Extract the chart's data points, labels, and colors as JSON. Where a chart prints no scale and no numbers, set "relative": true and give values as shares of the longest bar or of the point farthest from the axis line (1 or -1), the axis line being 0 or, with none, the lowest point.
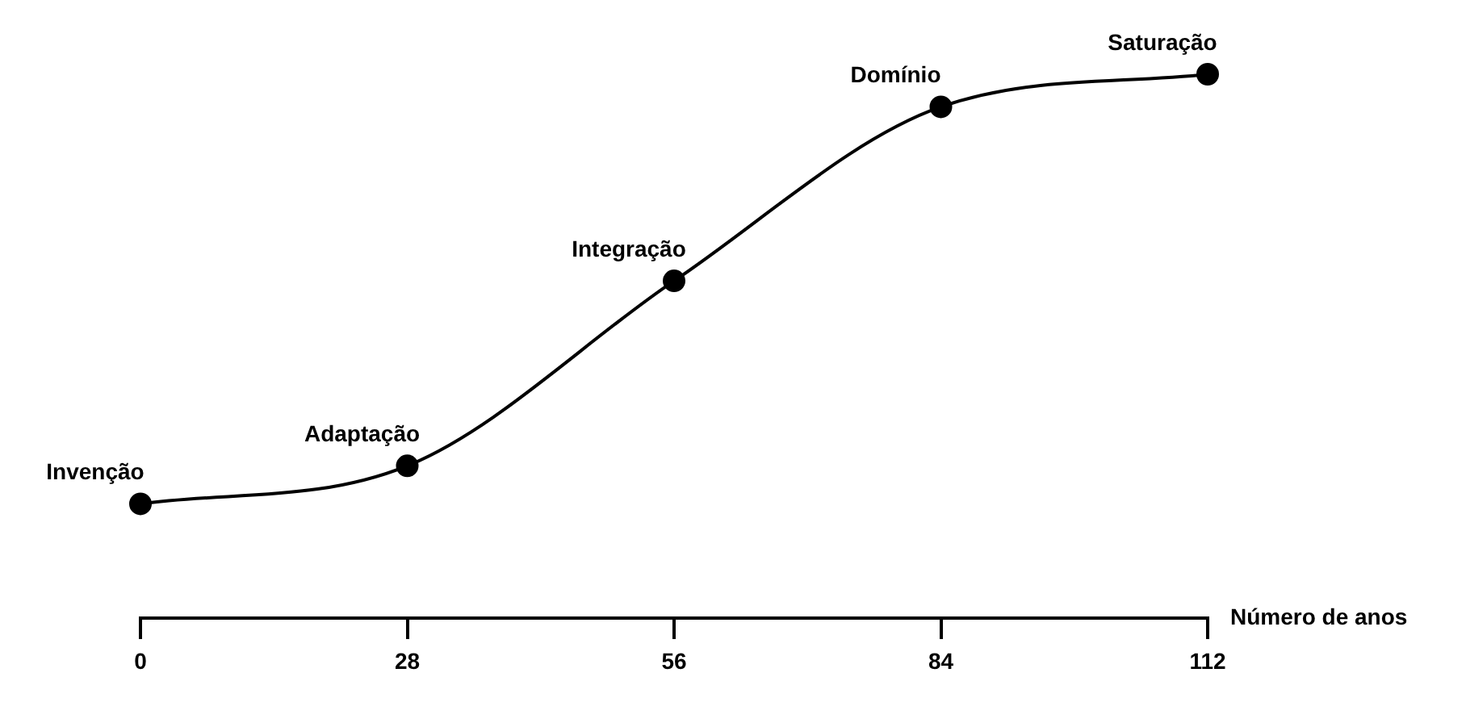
{
  "chart_data": {
    "type": "line",
    "xlabel": "Número de anos",
    "relative": true,
    "x": [
      0,
      28,
      56,
      84,
      112
    ],
    "values": [
      0.21,
      0.28,
      0.62,
      0.94,
      1
    ],
    "color": "#000000",
    "marker": "circle",
    "line_style": "solid",
    "xlim": [
      0,
      112
    ],
    "xticks": [
      0,
      28,
      56,
      84,
      112
    ],
    "annotations": [
      {
        "text": "Invenção",
        "x": 0,
        "y": 0.21
      },
      {
        "text": "Adaptação",
        "x": 28,
        "y": 0.28
      },
      {
        "text": "Integração",
        "x": 56,
        "y": 0.62
      },
      {
        "text": "Domínio",
        "x": 84,
        "y": 0.94
      },
      {
        "text": "Saturação",
        "x": 112,
        "y": 1
      }
    ]
  }
}
